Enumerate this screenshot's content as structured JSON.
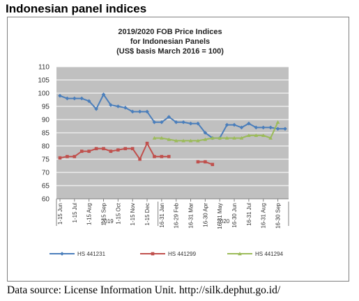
{
  "heading": "Indonesian panel indices",
  "source_note": "Data source: License Information Unit. http://silk.dephut.go.id/",
  "colors": {
    "plot_background": "#c0c0c0",
    "gridline": "#ffffff",
    "series": [
      "#4a7ebb",
      "#c0504d",
      "#9bbb59"
    ]
  },
  "chart_data": {
    "type": "line",
    "title": "2019/2020 FOB Price Indices",
    "subtitle": "for Indonesian Panels",
    "subtitle2": "(US$ basis March 2016 = 100)",
    "ylim": [
      60,
      110
    ],
    "y_ticks": [
      60,
      65,
      70,
      75,
      80,
      85,
      90,
      95,
      100,
      105,
      110
    ],
    "grid": true,
    "legend_position": "bottom",
    "x_tick_labels": [
      "1-15 Jun",
      "1-15 Jul",
      "1-15 Aug",
      "1-15 Sep",
      "1-15 Oct",
      "1-15 Nov",
      "1-15 Dec",
      "16-31 Jan",
      "16-29 Feb",
      "16-31 Mar",
      "16-30 Apr",
      "16-31 May",
      "16-30 Jun",
      "16-31 Jul",
      "16-31 Aug",
      "16-30 Sep"
    ],
    "year_labels": [
      {
        "label": "2019",
        "from": 0,
        "to": 13
      },
      {
        "label": "2020",
        "from": 14,
        "to": 32
      }
    ],
    "series": [
      {
        "name": "HS 441231",
        "values": [
          99,
          98,
          98,
          98,
          97,
          94,
          99.5,
          95.5,
          95,
          94.5,
          93,
          93,
          93,
          89,
          89,
          91,
          89,
          89,
          88.5,
          88.5,
          85,
          83,
          83,
          88,
          88,
          87,
          88.5,
          87,
          87,
          87,
          86.5,
          86.5
        ]
      },
      {
        "name": "HS 441299",
        "values": [
          75.5,
          76,
          76,
          78,
          78,
          79,
          79,
          78,
          78.5,
          79,
          79,
          75,
          81,
          76,
          76,
          76,
          null,
          null,
          null,
          74,
          74,
          73,
          null,
          null,
          null,
          null,
          null,
          null,
          null,
          null,
          null,
          null
        ]
      },
      {
        "name": "HS 441294",
        "values": [
          null,
          null,
          null,
          null,
          null,
          null,
          null,
          null,
          null,
          null,
          null,
          null,
          null,
          83,
          83,
          82.5,
          82,
          82,
          82,
          82,
          82.5,
          83,
          83,
          83,
          83,
          83,
          84,
          84,
          84,
          83,
          89,
          null
        ]
      }
    ]
  }
}
